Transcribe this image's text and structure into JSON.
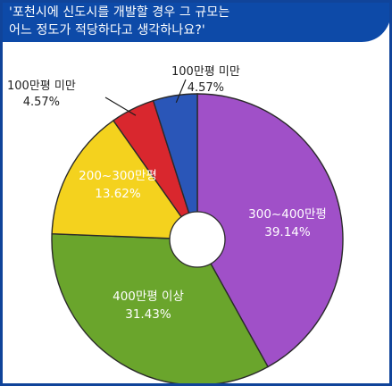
{
  "title": {
    "line1": "'포천시에 신도시를 개발할 경우 그 규모는",
    "line2": "어느 정도가 적당하다고 생각하나요?'"
  },
  "colors": {
    "frame": "#10449a",
    "title_band": "#0d4aa8",
    "background": "#ffffff",
    "text_dark": "#1e1e1e",
    "text_light": "#ffffff",
    "slice_outline": "#2a2a2a"
  },
  "chart_data": {
    "type": "pie",
    "title": "'포천시에 신도시를 개발할 경우 그 규모는 어느 정도가 적당하다고 생각하나요?'",
    "start_at": "12 o'clock",
    "direction": "clockwise",
    "inner_hole": true,
    "slices": [
      {
        "name": "300~400만평",
        "value": 39.14,
        "value_label": "39.14%",
        "color": "#a050c8",
        "label_placement": "inside"
      },
      {
        "name": "400만평 이상",
        "value": 31.43,
        "value_label": "31.43%",
        "color": "#6aa52c",
        "label_placement": "inside"
      },
      {
        "name": "200~300만평",
        "value": 13.62,
        "value_label": "13.62%",
        "color": "#f4d21e",
        "label_placement": "inside"
      },
      {
        "name": "100만평 미만",
        "value": 4.57,
        "value_label": "4.57%",
        "color": "#d9272e",
        "label_placement": "outside-left"
      },
      {
        "name": "100만평 미만",
        "value": 4.57,
        "value_label": "4.57%",
        "color": "#2a56b8",
        "label_placement": "outside-right"
      }
    ]
  }
}
